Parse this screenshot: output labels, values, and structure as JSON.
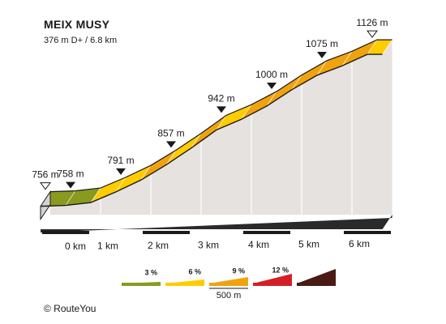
{
  "chart_data": {
    "type": "area",
    "title": "MEIX MUSY",
    "subtitle": "376 m D+ / 6.8 km",
    "x_unit": "km",
    "y_unit": "m",
    "profile": [
      {
        "km": 0.0,
        "m": 756
      },
      {
        "km": 0.5,
        "m": 758
      },
      {
        "km": 1.0,
        "m": 765
      },
      {
        "km": 1.5,
        "m": 791
      },
      {
        "km": 2.0,
        "m": 820
      },
      {
        "km": 2.5,
        "m": 857
      },
      {
        "km": 3.0,
        "m": 898
      },
      {
        "km": 3.5,
        "m": 942
      },
      {
        "km": 4.0,
        "m": 968
      },
      {
        "km": 4.5,
        "m": 1000
      },
      {
        "km": 5.0,
        "m": 1040
      },
      {
        "km": 5.5,
        "m": 1075
      },
      {
        "km": 6.0,
        "m": 1098
      },
      {
        "km": 6.5,
        "m": 1126
      },
      {
        "km": 6.8,
        "m": 1126
      }
    ],
    "segments": [
      {
        "from_km": 0.0,
        "to_km": 0.5,
        "grade_class": 0
      },
      {
        "from_km": 0.5,
        "to_km": 1.0,
        "grade_class": 0
      },
      {
        "from_km": 1.0,
        "to_km": 1.5,
        "grade_class": 1
      },
      {
        "from_km": 1.5,
        "to_km": 2.0,
        "grade_class": 1
      },
      {
        "from_km": 2.0,
        "to_km": 2.5,
        "grade_class": 2
      },
      {
        "from_km": 2.5,
        "to_km": 3.0,
        "grade_class": 1
      },
      {
        "from_km": 3.0,
        "to_km": 3.5,
        "grade_class": 2
      },
      {
        "from_km": 3.5,
        "to_km": 4.0,
        "grade_class": 1
      },
      {
        "from_km": 4.0,
        "to_km": 4.5,
        "grade_class": 2
      },
      {
        "from_km": 4.5,
        "to_km": 5.0,
        "grade_class": 2
      },
      {
        "from_km": 5.0,
        "to_km": 5.5,
        "grade_class": 2
      },
      {
        "from_km": 5.5,
        "to_km": 6.0,
        "grade_class": 2
      },
      {
        "from_km": 6.0,
        "to_km": 6.5,
        "grade_class": 2
      },
      {
        "from_km": 6.5,
        "to_km": 6.8,
        "grade_class": 1
      }
    ],
    "altitude_labels": [
      {
        "km": 0.0,
        "value": "756 m",
        "marker": "start"
      },
      {
        "km": 0.5,
        "value": "758 m",
        "marker": "filled"
      },
      {
        "km": 1.5,
        "value": "791 m",
        "marker": "filled"
      },
      {
        "km": 2.5,
        "value": "857 m",
        "marker": "filled"
      },
      {
        "km": 3.5,
        "value": "942 m",
        "marker": "filled"
      },
      {
        "km": 4.5,
        "value": "1000 m",
        "marker": "filled"
      },
      {
        "km": 5.5,
        "value": "1075 m",
        "marker": "filled"
      },
      {
        "km": 6.5,
        "value": "1126 m",
        "marker": "end"
      }
    ],
    "x_ticks": [
      {
        "km": 0,
        "label": "0 km"
      },
      {
        "km": 1,
        "label": "1 km"
      },
      {
        "km": 2,
        "label": "2 km"
      },
      {
        "km": 3,
        "label": "3 km"
      },
      {
        "km": 4,
        "label": "4 km"
      },
      {
        "km": 5,
        "label": "5 km"
      },
      {
        "km": 6,
        "label": "6 km"
      }
    ],
    "legend": {
      "classes": [
        {
          "label": "3 %",
          "color": "#8a9a1e"
        },
        {
          "label": "6 %",
          "color": "#ffcc00"
        },
        {
          "label": "9 %",
          "color": "#f0a30f"
        },
        {
          "label": "12 %",
          "color": "#d22027"
        },
        {
          "label": "",
          "color": "#4a1a14"
        }
      ],
      "scale_label": "500 m"
    },
    "colors": {
      "wall": "#e6e2e0",
      "side": "#d6d2cf",
      "outline": "#1a1a1a"
    }
  },
  "credit": "© RouteYou"
}
